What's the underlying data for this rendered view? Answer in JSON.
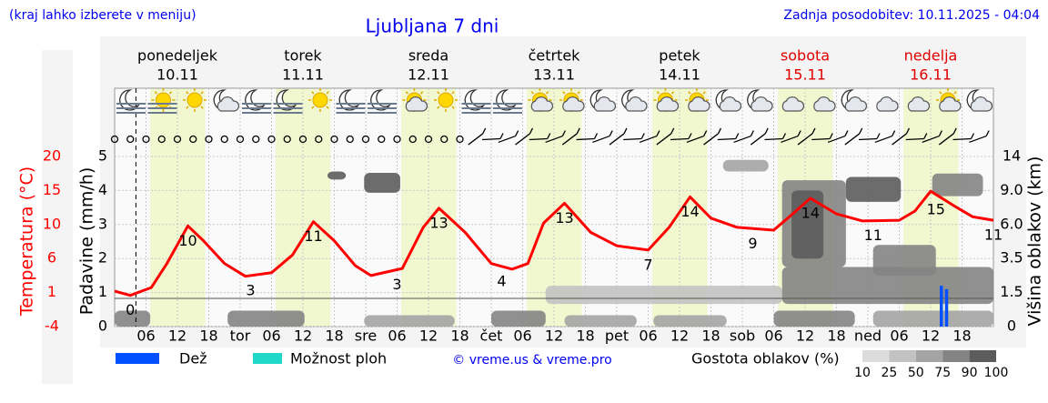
{
  "chart_data": {
    "type": "meteogram",
    "note_left": "(kraj lahko izberete v meniju)",
    "title": "Ljubljana 7 dni",
    "updated": "Zadnja posodobitev: 10.11.2025 - 04:04",
    "days": [
      {
        "name": "ponedeljek",
        "date": "10.11",
        "color": "#000000"
      },
      {
        "name": "torek",
        "date": "11.11",
        "color": "#000000"
      },
      {
        "name": "sreda",
        "date": "12.11",
        "color": "#000000"
      },
      {
        "name": "četrtek",
        "date": "13.11",
        "color": "#000000"
      },
      {
        "name": "petek",
        "date": "14.11",
        "color": "#000000"
      },
      {
        "name": "sobota",
        "date": "15.11",
        "color": "#e00000"
      },
      {
        "name": "nedelja",
        "date": "16.11",
        "color": "#e00000"
      }
    ],
    "xlim": [
      0,
      168
    ],
    "xticks": [
      {
        "value": 6,
        "label": "06"
      },
      12,
      18,
      {
        "value": 24,
        "label": "tor"
      },
      {
        "value": 30,
        "label": "06"
      },
      {
        "value": 36,
        "label": "12"
      },
      {
        "value": 42,
        "label": "18"
      },
      {
        "value": 48,
        "label": "sre"
      },
      {
        "value": 54,
        "label": "06"
      },
      {
        "value": 60,
        "label": "12"
      },
      {
        "value": 66,
        "label": "18"
      },
      {
        "value": 72,
        "label": "čet"
      },
      {
        "value": 78,
        "label": "06"
      },
      {
        "value": 84,
        "label": "12"
      },
      {
        "value": 90,
        "label": "18"
      },
      {
        "value": 96,
        "label": "pet"
      },
      {
        "value": 102,
        "label": "06"
      },
      {
        "value": 108,
        "label": "12"
      },
      {
        "value": 114,
        "label": "18"
      },
      {
        "value": 120,
        "label": "sob"
      },
      {
        "value": 126,
        "label": "06"
      },
      {
        "value": 132,
        "label": "12"
      },
      {
        "value": 138,
        "label": "18"
      },
      {
        "value": 144,
        "label": "ned"
      },
      {
        "value": 150,
        "label": "06"
      },
      {
        "value": 156,
        "label": "12"
      },
      {
        "value": 162,
        "label": "18"
      }
    ],
    "now_hour": 4.07,
    "ylabel": "Padavine (mm/h)",
    "ylim": [
      0,
      5
    ],
    "yticks": [
      0,
      1,
      2,
      3,
      4,
      5
    ],
    "temp_label": "Temperatura (°C)",
    "temp_color": "#ff0000",
    "temp_lim": [
      -4,
      20
    ],
    "temp_ticks": [
      {
        "value": 20,
        "label": "20"
      },
      {
        "value": 15.2,
        "label": "15"
      },
      {
        "value": 10.4,
        "label": "10"
      },
      {
        "value": 5.6,
        "label": "6"
      },
      {
        "value": 0.8,
        "label": "1"
      },
      {
        "value": -4,
        "label": "-4"
      }
    ],
    "y2label": "Višina oblakov (km)",
    "y2ticks": [
      0,
      1.5,
      3.5,
      {
        "value": 6,
        "label": "6.0"
      },
      {
        "value": 9,
        "label": "9.0"
      },
      14
    ],
    "temperature": {
      "x": [
        0,
        3,
        7,
        10,
        14,
        17,
        21,
        25,
        30,
        34,
        38,
        42,
        46,
        49,
        55,
        59,
        62,
        67,
        72,
        76,
        79,
        82,
        86,
        91,
        96,
        102,
        106,
        110,
        114,
        119,
        126,
        129,
        133,
        138,
        143,
        150,
        153,
        156,
        161,
        164,
        168
      ],
      "values": [
        1.0,
        0.4,
        1.5,
        4.9,
        10.2,
        8.1,
        4.9,
        3.1,
        3.6,
        6.1,
        10.8,
        8.1,
        4.6,
        3.2,
        4.2,
        10.0,
        12.7,
        9.3,
        4.9,
        4.1,
        4.9,
        10.6,
        13.4,
        9.3,
        7.4,
        6.8,
        10.0,
        14.3,
        11.3,
        10.0,
        9.6,
        11.5,
        14.1,
        11.9,
        10.9,
        11.0,
        12.3,
        15.1,
        12.8,
        11.5,
        11.0
      ]
    },
    "temp_labels": [
      {
        "x": 3,
        "value": 0
      },
      {
        "x": 14,
        "value": 10
      },
      {
        "x": 26,
        "value": 3
      },
      {
        "x": 38,
        "value": 11
      },
      {
        "x": 54,
        "value": 3
      },
      {
        "x": 62,
        "value": 13
      },
      {
        "x": 74,
        "value": 4
      },
      {
        "x": 86,
        "value": 13
      },
      {
        "x": 102,
        "value": 7
      },
      {
        "x": 110,
        "value": 14
      },
      {
        "x": 122,
        "value": 9
      },
      {
        "x": 133,
        "value": 14
      },
      {
        "x": 145,
        "value": 11
      },
      {
        "x": 157,
        "value": 15
      },
      {
        "x": 168,
        "value": 11
      }
    ],
    "precip": {
      "name": "Dež",
      "color": "#0050ff",
      "x": [
        158,
        159
      ],
      "values": [
        1.2,
        1.1
      ]
    },
    "showers": {
      "name": "Možnost ploh",
      "color": "#20d8c8"
    },
    "copyright": "© vreme.us & vreme.pro",
    "density_label": "Gostota oblakov (%)",
    "density_ticks": [
      10,
      25,
      50,
      75,
      90,
      100
    ],
    "density_colors": [
      "#dcdcdc",
      "#c2c2c2",
      "#a4a4a4",
      "#848484",
      "#5c5c5c"
    ],
    "clouds": [
      {
        "x": [
          0,
          6.8
        ],
        "km": [
          0,
          0.7
        ],
        "density": 75
      },
      {
        "x": [
          21.6,
          36.3
        ],
        "km": [
          0,
          0.7
        ],
        "density": 75
      },
      {
        "x": [
          47.7,
          65
        ],
        "km": [
          0,
          0.5
        ],
        "density": 50
      },
      {
        "x": [
          72,
          82.4
        ],
        "km": [
          0,
          0.7
        ],
        "density": 75
      },
      {
        "x": [
          86,
          99.8
        ],
        "km": [
          0,
          0.5
        ],
        "density": 50
      },
      {
        "x": [
          103,
          117
        ],
        "km": [
          0,
          0.5
        ],
        "density": 50
      },
      {
        "x": [
          126,
          141.5
        ],
        "km": [
          0,
          0.7
        ],
        "density": 75
      },
      {
        "x": [
          145,
          168
        ],
        "km": [
          0,
          0.7
        ],
        "density": 50
      },
      {
        "x": [
          82.4,
          127.6
        ],
        "km": [
          1,
          1.9
        ],
        "density": 25
      },
      {
        "x": [
          127.6,
          168
        ],
        "km": [
          1,
          3
        ],
        "density": 75
      },
      {
        "x": [
          40.7,
          44.2
        ],
        "km": [
          10.6,
          11.8
        ],
        "density": 90
      },
      {
        "x": [
          47.7,
          54.6
        ],
        "km": [
          8.8,
          11.6
        ],
        "density": 90
      },
      {
        "x": [
          116.3,
          125
        ],
        "km": [
          11.8,
          13.5
        ],
        "density": 50
      },
      {
        "x": [
          127.6,
          139.8
        ],
        "km": [
          3,
          10.5
        ],
        "density": 75
      },
      {
        "x": [
          129.4,
          135.5
        ],
        "km": [
          3.5,
          9
        ],
        "density": 90
      },
      {
        "x": [
          139.8,
          150.3
        ],
        "km": [
          8,
          11
        ],
        "density": 90
      },
      {
        "x": [
          156.3,
          166
        ],
        "km": [
          8.5,
          11.5
        ],
        "density": 75
      },
      {
        "x": [
          145,
          157
        ],
        "km": [
          2.5,
          4.5
        ],
        "density": 75
      }
    ]
  }
}
